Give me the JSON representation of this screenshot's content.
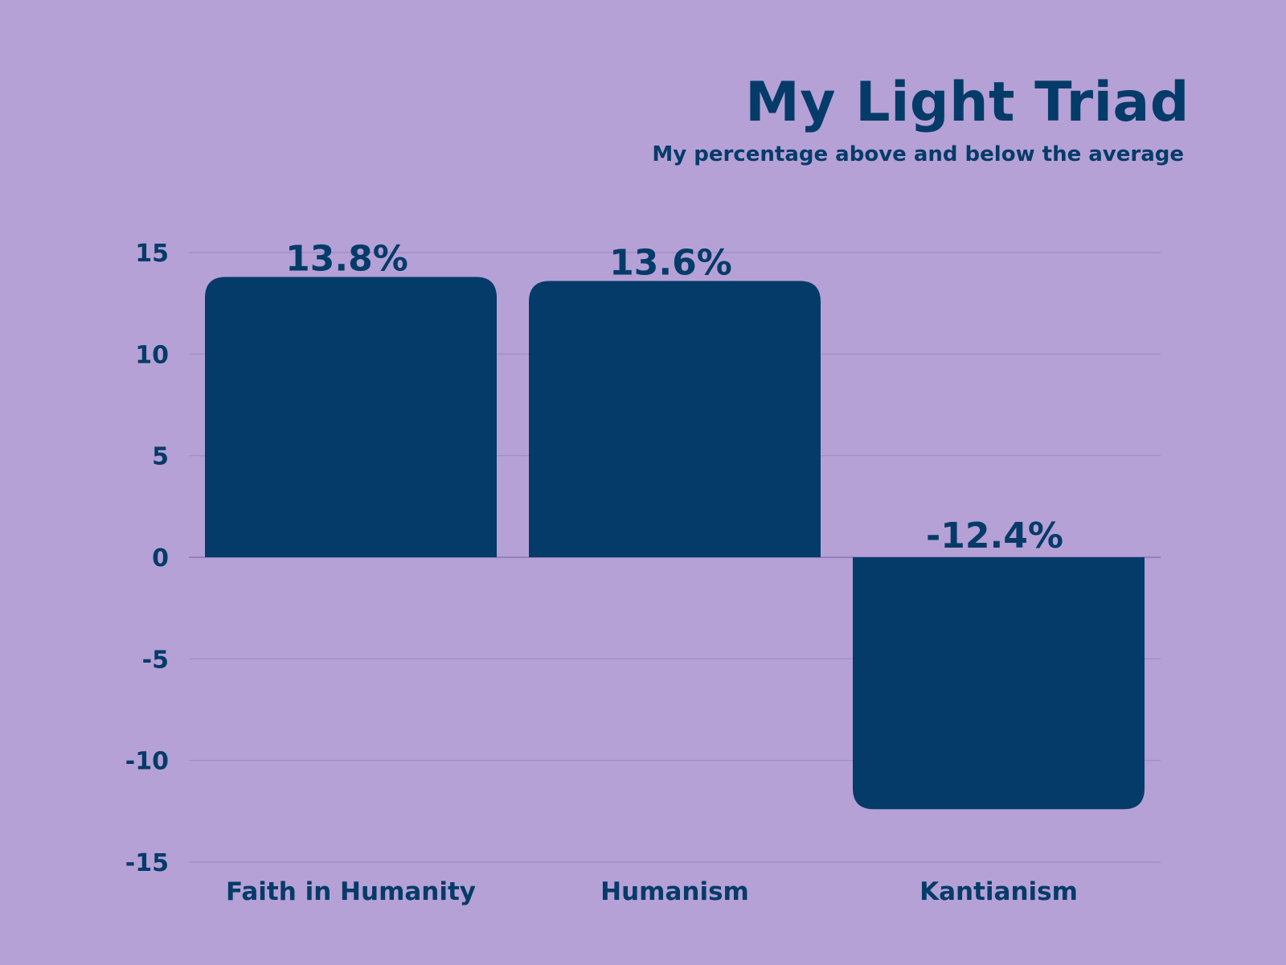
{
  "chart_data": {
    "type": "bar",
    "title": "My Light Triad",
    "subtitle": "My percentage above and below the average",
    "categories": [
      "Faith in Humanity",
      "Humanism",
      "Kantianism"
    ],
    "values": [
      13.8,
      13.6,
      -12.4
    ],
    "data_labels": [
      "13.8%",
      "13.6%",
      "-12.4%"
    ],
    "ylim": [
      -15,
      15
    ],
    "yticks": [
      15,
      10,
      5,
      0,
      -5,
      -10,
      -15
    ],
    "xlabel": "",
    "ylabel": "",
    "grid": true,
    "legend": "none",
    "colors": {
      "background": "#b5a1d6",
      "bar": "#053b69",
      "text": "#053b69",
      "grid": "#9d8cc6"
    }
  }
}
